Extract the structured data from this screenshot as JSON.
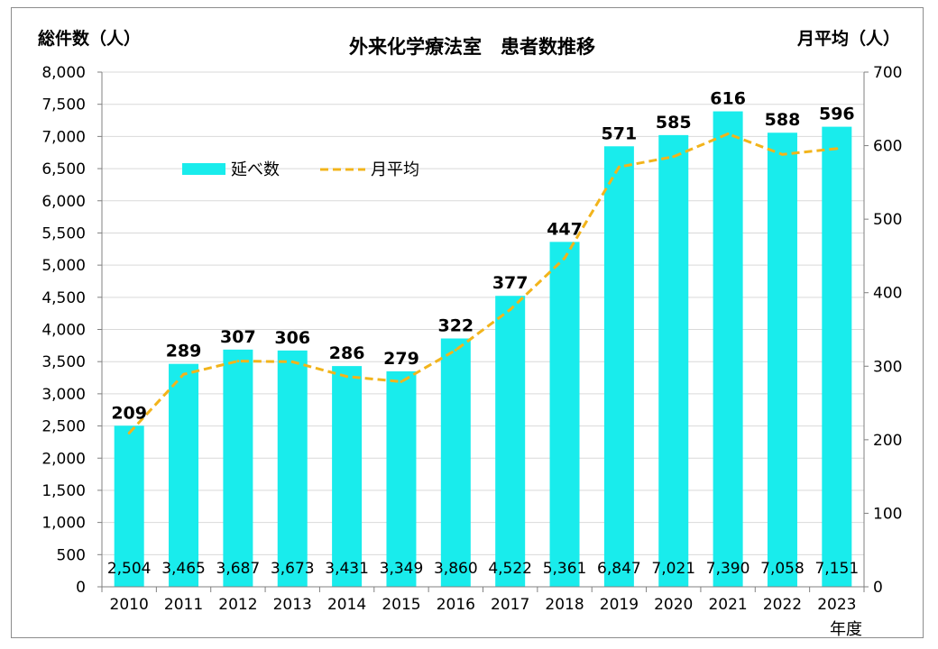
{
  "chart_data": {
    "type": "bar",
    "title": "外来化学療法室　患者数推移",
    "ylabel_left": "総件数（人）",
    "ylabel_right": "月平均（人）",
    "xlabel": "年度",
    "categories": [
      "2010",
      "2011",
      "2012",
      "2013",
      "2014",
      "2015",
      "2016",
      "2017",
      "2018",
      "2019",
      "2020",
      "2021",
      "2022",
      "2023"
    ],
    "series": [
      {
        "name": "延べ数",
        "type": "bar",
        "axis": "left",
        "color": "#19ECEC",
        "values": [
          2504,
          3465,
          3687,
          3673,
          3431,
          3349,
          3860,
          4522,
          5361,
          6847,
          7021,
          7390,
          7058,
          7151
        ],
        "labels": [
          "2,504",
          "3,465",
          "3,687",
          "3,673",
          "3,431",
          "3,349",
          "3,860",
          "4,522",
          "5,361",
          "6,847",
          "7,021",
          "7,390",
          "7,058",
          "7,151"
        ]
      },
      {
        "name": "月平均",
        "type": "line",
        "axis": "right",
        "color": "#F2B41B",
        "dashed": true,
        "values": [
          209,
          289,
          307,
          306,
          286,
          279,
          322,
          377,
          447,
          571,
          585,
          616,
          588,
          596
        ],
        "labels": [
          "209",
          "289",
          "307",
          "306",
          "286",
          "279",
          "322",
          "377",
          "447",
          "571",
          "585",
          "616",
          "588",
          "596"
        ]
      }
    ],
    "y_left": {
      "range": [
        0,
        8000
      ],
      "ticks": [
        "0",
        "500",
        "1,000",
        "1,500",
        "2,000",
        "2,500",
        "3,000",
        "3,500",
        "4,000",
        "4,500",
        "5,000",
        "5,500",
        "6,000",
        "6,500",
        "7,000",
        "7,500",
        "8,000"
      ]
    },
    "y_right": {
      "range": [
        0,
        700
      ],
      "ticks": [
        "0",
        "100",
        "200",
        "300",
        "400",
        "500",
        "600",
        "700"
      ]
    },
    "grid": true,
    "legend_position": "upper-left"
  }
}
